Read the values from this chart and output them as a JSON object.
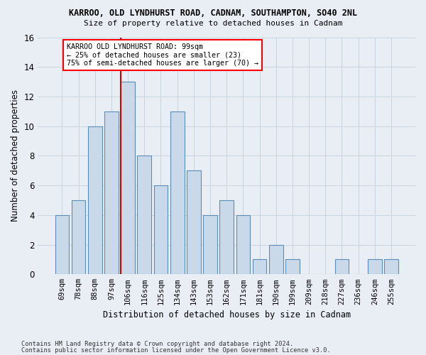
{
  "title1": "KARROO, OLD LYNDHURST ROAD, CADNAM, SOUTHAMPTON, SO40 2NL",
  "title2": "Size of property relative to detached houses in Cadnam",
  "xlabel": "Distribution of detached houses by size in Cadnam",
  "ylabel": "Number of detached properties",
  "categories": [
    "69sqm",
    "78sqm",
    "88sqm",
    "97sqm",
    "106sqm",
    "116sqm",
    "125sqm",
    "134sqm",
    "143sqm",
    "153sqm",
    "162sqm",
    "171sqm",
    "181sqm",
    "190sqm",
    "199sqm",
    "209sqm",
    "218sqm",
    "227sqm",
    "236sqm",
    "246sqm",
    "255sqm"
  ],
  "values": [
    4,
    5,
    10,
    11,
    13,
    8,
    6,
    11,
    7,
    4,
    5,
    4,
    1,
    2,
    1,
    0,
    0,
    1,
    0,
    1,
    1
  ],
  "bar_color": "#c9d9ea",
  "bar_edge_color": "#5b8db8",
  "vline_x": 4.0,
  "vline_color": "#cc0000",
  "annotation_text": "KARROO OLD LYNDHURST ROAD: 99sqm\n← 25% of detached houses are smaller (23)\n75% of semi-detached houses are larger (70) →",
  "ylim": [
    0,
    16
  ],
  "yticks": [
    0,
    2,
    4,
    6,
    8,
    10,
    12,
    14,
    16
  ],
  "footer1": "Contains HM Land Registry data © Crown copyright and database right 2024.",
  "footer2": "Contains public sector information licensed under the Open Government Licence v3.0.",
  "bg_color": "#e8eef4",
  "grid_color": "#c8d4e0"
}
